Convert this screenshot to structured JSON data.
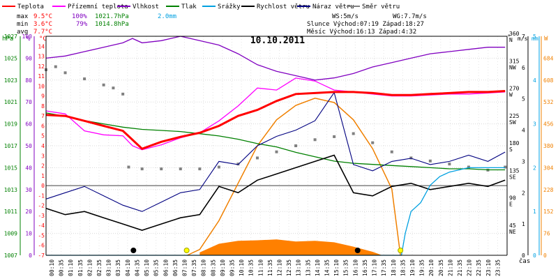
{
  "chart_data": {
    "type": "line",
    "title": "10.10.2011",
    "legend": [
      {
        "key": "temp",
        "label": "Teplota",
        "color": "#ff0000"
      },
      {
        "key": "feel",
        "label": "Přízemní teplota",
        "color": "#ff00ff"
      },
      {
        "key": "hum",
        "label": "Vlhkost",
        "color": "#8000c0"
      },
      {
        "key": "pres",
        "label": "Tlak",
        "color": "#008000"
      },
      {
        "key": "rain",
        "label": "Srážky",
        "color": "#00a0e0"
      },
      {
        "key": "wind",
        "label": "Rychlost větru",
        "color": "#000000"
      },
      {
        "key": "gust",
        "label": "Náraz větru",
        "color": "#000080"
      },
      {
        "key": "dir",
        "label": "Směr větru",
        "color": "#808080"
      }
    ],
    "stats": {
      "max": {
        "label": "max",
        "temp": "9.5°C",
        "hum": "100%",
        "pres": "1021.7hPa",
        "rain": "2.0mm"
      },
      "min": {
        "label": "min",
        "temp": "3.6°C",
        "hum": "79%",
        "pres": "1014.8hPa"
      },
      "avg": {
        "label": "avg",
        "temp": "7.7°C"
      }
    },
    "info": {
      "ws": "WS:5m/s",
      "wg": "WG:7.7m/s",
      "sun": "Slunce Východ:07:19  Západ:18:27",
      "moon": "Měsíc  Východ:16:13  Západ:4:32"
    },
    "axis_titles": {
      "hpa": "hPa",
      "pct": "%",
      "degc": "°C",
      "deg": "°",
      "ms": "m/s",
      "mm": "mm",
      "wm2": "W",
      "time": "čas"
    },
    "axes": {
      "pressure": {
        "range": [
          1007,
          1027
        ],
        "ticks": [
          "1007",
          "1009",
          "1011",
          "1013",
          "1015",
          "1017",
          "1019",
          "1021",
          "1023",
          "1025",
          "1027"
        ]
      },
      "humidity": {
        "range": [
          0,
          100
        ],
        "ticks": [
          "0",
          "10",
          "20",
          "30",
          "40",
          "50",
          "60",
          "70",
          "80",
          "90",
          "100"
        ]
      },
      "temperature": {
        "range": [
          -7,
          15
        ],
        "ticks": [
          "-7",
          "-6",
          "-5",
          "-4",
          "-3",
          "-2",
          "-1",
          "0",
          "1",
          "2",
          "3",
          "4",
          "5",
          "6",
          "7",
          "8",
          "9",
          "10",
          "11",
          "12",
          "13",
          "14"
        ]
      },
      "direction": {
        "range": [
          0,
          360
        ],
        "ticks": [
          {
            "v": 360,
            "deg": "360",
            "dir": "N"
          },
          {
            "v": 315,
            "deg": "315",
            "dir": "NW"
          },
          {
            "v": 270,
            "deg": "270",
            "dir": "W"
          },
          {
            "v": 225,
            "deg": "225",
            "dir": "SW"
          },
          {
            "v": 180,
            "deg": "180",
            "dir": "S"
          },
          {
            "v": 135,
            "deg": "135",
            "dir": "SE"
          },
          {
            "v": 90,
            "deg": "90",
            "dir": "E"
          },
          {
            "v": 45,
            "deg": "45",
            "dir": "NE"
          }
        ]
      },
      "wind_speed": {
        "range": [
          0,
          7
        ],
        "ticks": [
          "0",
          "1",
          "2",
          "3",
          "4",
          "5",
          "6",
          "7"
        ]
      },
      "rain": {
        "range": [
          0,
          5
        ],
        "ticks": [
          "0",
          "1",
          "2",
          "3",
          "4",
          "5"
        ]
      },
      "solar": {
        "range": [
          0,
          760
        ],
        "ticks": [
          "0",
          "76",
          "152",
          "228",
          "304",
          "380",
          "456",
          "532",
          "608",
          "684"
        ]
      },
      "time": {
        "ticks": [
          "00:10",
          "00:35",
          "01:10",
          "01:35",
          "02:10",
          "02:35",
          "03:10",
          "03:35",
          "04:10",
          "04:35",
          "05:10",
          "05:35",
          "06:10",
          "06:35",
          "07:10",
          "07:35",
          "08:10",
          "08:35",
          "09:10",
          "09:35",
          "10:10",
          "10:35",
          "11:10",
          "11:35",
          "12:10",
          "12:35",
          "13:10",
          "13:35",
          "14:10",
          "14:35",
          "15:10",
          "15:35",
          "16:10",
          "16:35",
          "17:10",
          "17:35",
          "18:10",
          "18:35",
          "19:10",
          "19:35",
          "20:10",
          "20:35",
          "21:10",
          "21:35",
          "22:10",
          "22:35",
          "23:10",
          "23:35"
        ]
      }
    },
    "series": {
      "temp": [
        [
          0,
          7.1
        ],
        [
          1,
          7.0
        ],
        [
          2,
          6.5
        ],
        [
          3,
          6.0
        ],
        [
          4,
          5.5
        ],
        [
          4.5,
          4.6
        ],
        [
          5,
          3.7
        ],
        [
          6,
          4.4
        ],
        [
          7,
          4.9
        ],
        [
          8,
          5.3
        ],
        [
          9,
          6.0
        ],
        [
          10,
          7.0
        ],
        [
          11,
          7.6
        ],
        [
          12,
          8.5
        ],
        [
          13,
          9.2
        ],
        [
          14,
          9.3
        ],
        [
          15,
          9.4
        ],
        [
          16,
          9.4
        ],
        [
          17,
          9.3
        ],
        [
          18,
          9.1
        ],
        [
          19,
          9.1
        ],
        [
          20,
          9.2
        ],
        [
          21,
          9.3
        ],
        [
          22,
          9.4
        ],
        [
          23,
          9.4
        ],
        [
          23.9,
          9.5
        ]
      ],
      "feel": [
        [
          0,
          7.5
        ],
        [
          1,
          7.2
        ],
        [
          2,
          5.5
        ],
        [
          3,
          5.1
        ],
        [
          4,
          5.0
        ],
        [
          4.5,
          4.0
        ],
        [
          5,
          3.6
        ],
        [
          6,
          4.1
        ],
        [
          7,
          4.8
        ],
        [
          8,
          5.3
        ],
        [
          9,
          6.5
        ],
        [
          10,
          8.0
        ],
        [
          11,
          9.8
        ],
        [
          12,
          9.6
        ],
        [
          13,
          10.8
        ],
        [
          14,
          10.5
        ],
        [
          15,
          9.6
        ],
        [
          16,
          9.4
        ],
        [
          17,
          9.2
        ],
        [
          18,
          9.0
        ],
        [
          19,
          9.0
        ],
        [
          20,
          9.1
        ],
        [
          21,
          9.2
        ],
        [
          22,
          9.2
        ],
        [
          23,
          9.3
        ],
        [
          23.9,
          9.4
        ]
      ],
      "hum": [
        [
          0,
          90
        ],
        [
          1,
          91
        ],
        [
          2,
          93
        ],
        [
          3,
          95
        ],
        [
          4,
          97
        ],
        [
          4.5,
          99
        ],
        [
          5,
          97
        ],
        [
          6,
          98
        ],
        [
          7,
          100
        ],
        [
          7.5,
          99
        ],
        [
          8,
          98
        ],
        [
          9,
          96
        ],
        [
          10,
          92
        ],
        [
          11,
          87
        ],
        [
          12,
          84
        ],
        [
          13,
          82
        ],
        [
          14,
          80
        ],
        [
          15,
          81
        ],
        [
          16,
          83
        ],
        [
          17,
          86
        ],
        [
          18,
          88
        ],
        [
          19,
          90
        ],
        [
          20,
          92
        ],
        [
          21,
          93
        ],
        [
          22,
          94
        ],
        [
          23,
          95
        ],
        [
          23.9,
          95
        ]
      ],
      "pres": [
        [
          0,
          1020.0
        ],
        [
          1,
          1019.7
        ],
        [
          2,
          1019.3
        ],
        [
          3,
          1019.0
        ],
        [
          4,
          1018.7
        ],
        [
          5,
          1018.5
        ],
        [
          6,
          1018.4
        ],
        [
          7,
          1018.3
        ],
        [
          8,
          1018.1
        ],
        [
          9,
          1017.9
        ],
        [
          10,
          1017.6
        ],
        [
          11,
          1017.2
        ],
        [
          12,
          1016.9
        ],
        [
          13,
          1016.4
        ],
        [
          14,
          1016.0
        ],
        [
          15,
          1015.6
        ],
        [
          16,
          1015.4
        ],
        [
          17,
          1015.3
        ],
        [
          18,
          1015.2
        ],
        [
          19,
          1015.1
        ],
        [
          20,
          1015.0
        ],
        [
          21,
          1014.9
        ],
        [
          22,
          1014.9
        ],
        [
          23,
          1014.8
        ],
        [
          23.9,
          1014.8
        ]
      ],
      "rain": [
        [
          0,
          0
        ],
        [
          18.5,
          0
        ],
        [
          18.7,
          0.5
        ],
        [
          19.0,
          1.0
        ],
        [
          19.5,
          1.2
        ],
        [
          20.0,
          1.6
        ],
        [
          20.5,
          1.8
        ],
        [
          21,
          1.9
        ],
        [
          22,
          2.0
        ],
        [
          23.9,
          2.0
        ]
      ],
      "wind": [
        [
          0,
          1.5
        ],
        [
          1,
          1.3
        ],
        [
          2,
          1.4
        ],
        [
          3,
          1.2
        ],
        [
          4,
          1.0
        ],
        [
          5,
          0.8
        ],
        [
          6,
          1.0
        ],
        [
          7,
          1.2
        ],
        [
          8,
          1.3
        ],
        [
          9,
          2.2
        ],
        [
          10,
          2.0
        ],
        [
          11,
          2.4
        ],
        [
          12,
          2.6
        ],
        [
          13,
          2.8
        ],
        [
          14,
          3.0
        ],
        [
          15,
          3.2
        ],
        [
          16,
          2.0
        ],
        [
          17,
          1.9
        ],
        [
          18,
          2.2
        ],
        [
          19,
          2.3
        ],
        [
          20,
          2.1
        ],
        [
          21,
          2.2
        ],
        [
          22,
          2.3
        ],
        [
          23,
          2.2
        ],
        [
          23.9,
          2.4
        ]
      ],
      "gust": [
        [
          0,
          1.8
        ],
        [
          1,
          2.0
        ],
        [
          2,
          2.2
        ],
        [
          3,
          1.9
        ],
        [
          4,
          1.6
        ],
        [
          5,
          1.4
        ],
        [
          6,
          1.7
        ],
        [
          7,
          2.0
        ],
        [
          8,
          2.1
        ],
        [
          9,
          3.0
        ],
        [
          10,
          2.9
        ],
        [
          11,
          3.5
        ],
        [
          12,
          3.8
        ],
        [
          13,
          4.0
        ],
        [
          14,
          4.3
        ],
        [
          15,
          5.2
        ],
        [
          16,
          2.9
        ],
        [
          17,
          2.7
        ],
        [
          18,
          3.0
        ],
        [
          19,
          3.1
        ],
        [
          20,
          2.9
        ],
        [
          21,
          3.0
        ],
        [
          22,
          3.2
        ],
        [
          23,
          3.0
        ],
        [
          23.9,
          3.3
        ]
      ],
      "dir": [
        [
          0,
          305
        ],
        [
          0.5,
          310
        ],
        [
          1,
          300
        ],
        [
          2,
          290
        ],
        [
          3,
          280
        ],
        [
          3.5,
          275
        ],
        [
          4,
          265
        ],
        [
          4.3,
          145
        ],
        [
          5,
          142
        ],
        [
          6,
          142
        ],
        [
          7,
          142
        ],
        [
          8,
          142
        ],
        [
          9,
          145
        ],
        [
          10,
          150
        ],
        [
          11,
          160
        ],
        [
          12,
          170
        ],
        [
          13,
          180
        ],
        [
          14,
          190
        ],
        [
          15,
          195
        ],
        [
          16,
          200
        ],
        [
          17,
          185
        ],
        [
          18,
          170
        ],
        [
          19,
          160
        ],
        [
          20,
          155
        ],
        [
          21,
          150
        ],
        [
          22,
          145
        ],
        [
          23,
          140
        ],
        [
          23.9,
          145
        ]
      ],
      "solar": [
        [
          7.35,
          0
        ],
        [
          8,
          20
        ],
        [
          9,
          120
        ],
        [
          10,
          250
        ],
        [
          11,
          380
        ],
        [
          12,
          470
        ],
        [
          13,
          520
        ],
        [
          14,
          545
        ],
        [
          15,
          530
        ],
        [
          16,
          470
        ],
        [
          17,
          370
        ],
        [
          18,
          230
        ],
        [
          18.45,
          0
        ]
      ],
      "radiation_fill": [
        [
          8,
          10
        ],
        [
          9,
          40
        ],
        [
          10,
          50
        ],
        [
          11,
          52
        ],
        [
          12,
          55
        ],
        [
          13,
          48
        ],
        [
          14,
          50
        ],
        [
          15,
          45
        ],
        [
          16,
          30
        ],
        [
          17,
          12
        ],
        [
          17.5,
          0
        ]
      ]
    },
    "markers": [
      {
        "t": 4.55,
        "kind": "moon-set"
      },
      {
        "t": 7.32,
        "kind": "sun-rise"
      },
      {
        "t": 16.22,
        "kind": "moon-rise"
      },
      {
        "t": 18.45,
        "kind": "sun-set"
      }
    ]
  }
}
